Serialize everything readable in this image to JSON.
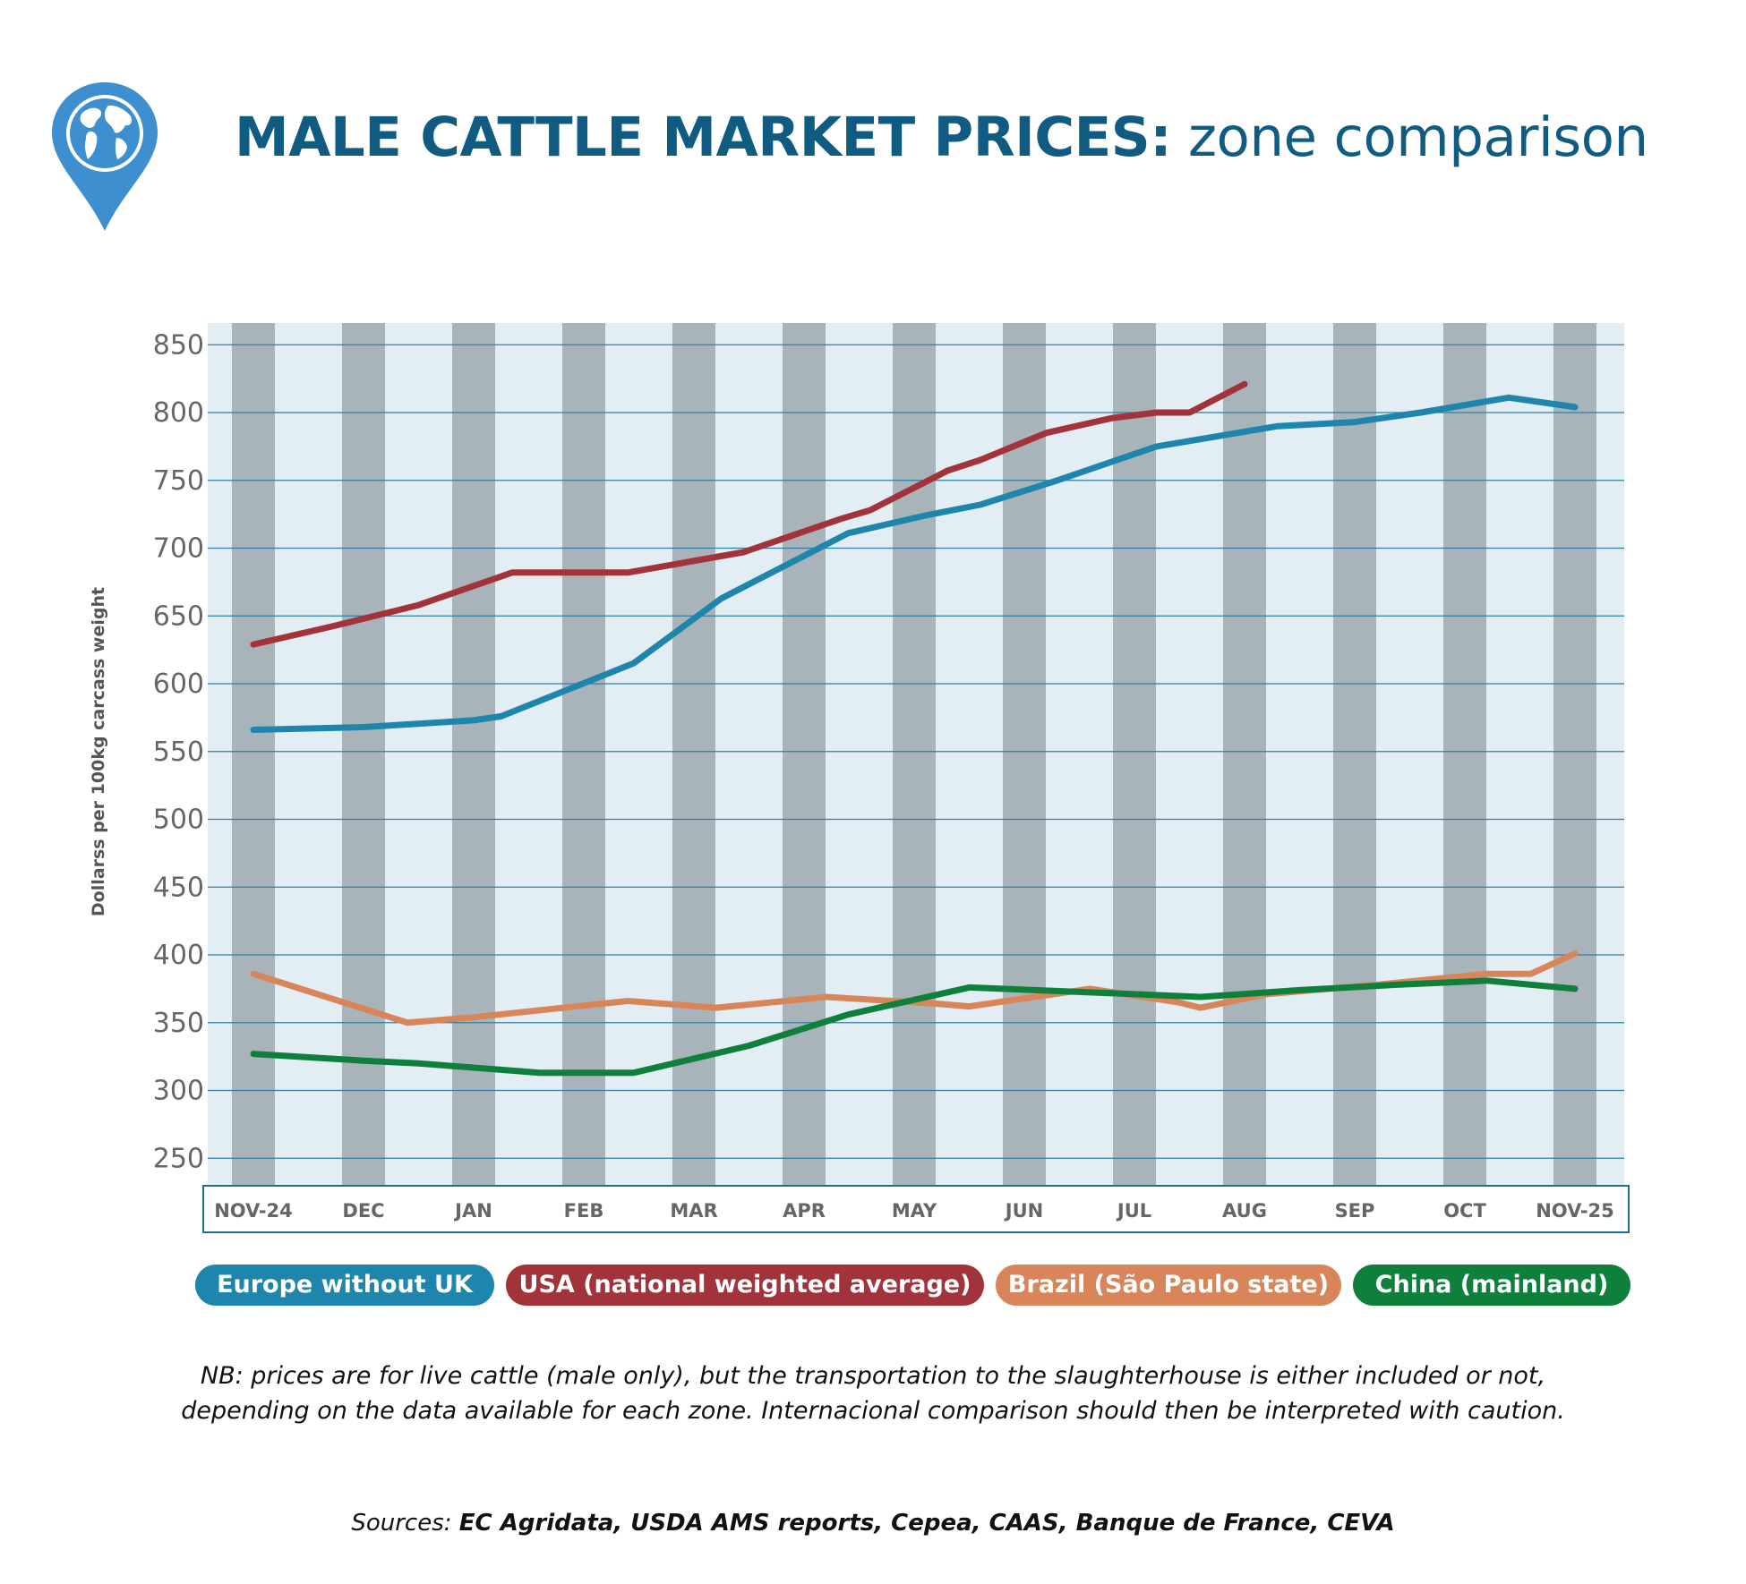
{
  "header": {
    "title_bold": "MALE CATTLE MARKET PRICES:",
    "title_rest": " zone comparison"
  },
  "legend": [
    {
      "label": "Europe without UK",
      "color": "#1e86ad"
    },
    {
      "label": "USA (national weighted average)",
      "color": "#a3333b"
    },
    {
      "label": "Brazil (São Paulo state)",
      "color": "#d9855a"
    },
    {
      "label": "China (mainland)",
      "color": "#0f7f3c"
    }
  ],
  "chart_data": {
    "type": "line",
    "title": "MALE CATTLE MARKET PRICES: zone comparison",
    "ylabel": "Dollarss per 100kg carcass weight",
    "xlabel": "",
    "ylim": [
      225,
      850
    ],
    "yticks": [
      850,
      800,
      750,
      700,
      650,
      600,
      550,
      500,
      450,
      400,
      350,
      300,
      250
    ],
    "grid": "horizontal",
    "categories": [
      "NOV-24",
      "DEC",
      "JAN",
      "FEB",
      "MAR",
      "APR",
      "MAY",
      "JUN",
      "JUL",
      "AUG",
      "SEP",
      "OCT",
      "NOV-25"
    ],
    "series": [
      {
        "name": "Europe without UK",
        "color": "#1e86ad",
        "x": [
          0,
          1,
          2,
          2.25,
          3.45,
          4.25,
          5.4,
          6.1,
          6.6,
          7.3,
          8.2,
          9.3,
          10,
          10.6,
          11.4,
          12
        ],
        "values": [
          566,
          568,
          573,
          576,
          615,
          663,
          711,
          724,
          732,
          750,
          775,
          790,
          793,
          800,
          811,
          804
        ]
      },
      {
        "name": "USA (national weighted average)",
        "color": "#a3333b",
        "x": [
          0,
          0.7,
          1.5,
          2.35,
          3.4,
          4.45,
          5.35,
          5.6,
          6.3,
          6.6,
          7.2,
          7.8,
          8.2,
          8.5,
          9
        ],
        "values": [
          629,
          642,
          658,
          682,
          682,
          697,
          722,
          728,
          757,
          765,
          785,
          796,
          800,
          800,
          821
        ]
      },
      {
        "name": "Brazil (São Paulo state)",
        "color": "#d9855a",
        "x": [
          0,
          1.4,
          2,
          3.4,
          4.2,
          5.2,
          6.2,
          6.5,
          7.6,
          8.4,
          8.6,
          9.2,
          10.2,
          11.2,
          11.6,
          12
        ],
        "values": [
          386,
          350,
          354,
          366,
          361,
          369,
          364,
          362,
          375,
          365,
          361,
          371,
          378,
          386,
          386,
          401
        ]
      },
      {
        "name": "China (mainland)",
        "color": "#0f7f3c",
        "x": [
          0,
          1,
          1.5,
          2.6,
          3.45,
          4.5,
          5.4,
          6.5,
          8,
          8.6,
          9.5,
          10.4,
          11.2,
          12
        ],
        "values": [
          327,
          322,
          320,
          313,
          313,
          333,
          356,
          376,
          371,
          369,
          374,
          378,
          381,
          375
        ]
      }
    ]
  },
  "footnote": {
    "line1": "NB: prices are for live cattle (male only), but the transportation to the slaughterhouse is either included or not,",
    "line2": "depending on the data available for each zone. Internacional comparison should then be interpreted with caution."
  },
  "sources": {
    "prefix": "Sources: ",
    "names": "EC Agridata, USDA AMS reports, Cepea, CAAS, Banque de France, CEVA"
  }
}
